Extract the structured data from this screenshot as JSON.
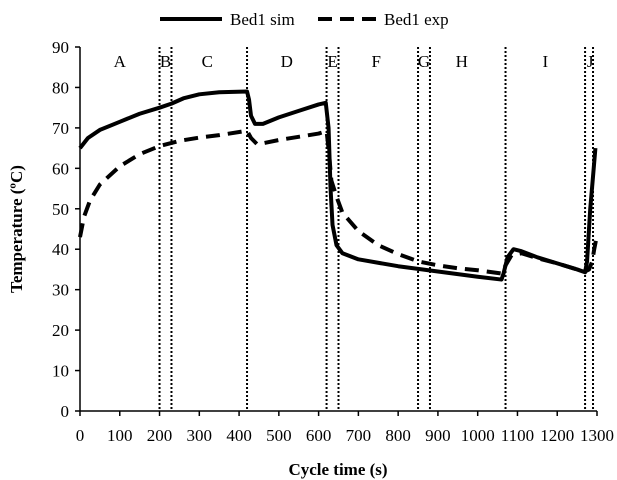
{
  "chart_data": {
    "type": "line",
    "title": "",
    "xlabel": "Cycle time (s)",
    "ylabel": "Temperature (ºC)",
    "xlim": [
      0,
      1300
    ],
    "ylim": [
      0,
      90
    ],
    "x_ticks": [
      0,
      100,
      200,
      300,
      400,
      500,
      600,
      700,
      800,
      900,
      1000,
      1100,
      1200,
      1300
    ],
    "y_ticks": [
      0,
      10,
      20,
      30,
      40,
      50,
      60,
      70,
      80,
      90
    ],
    "grid": false,
    "legend_position": "top",
    "series": [
      {
        "name": "Bed1 sim",
        "style": "solid",
        "color": "#000000",
        "points": [
          [
            0,
            65
          ],
          [
            20,
            67.5
          ],
          [
            50,
            69.5
          ],
          [
            100,
            71.5
          ],
          [
            150,
            73.5
          ],
          [
            200,
            75
          ],
          [
            230,
            76
          ],
          [
            260,
            77.3
          ],
          [
            300,
            78.3
          ],
          [
            350,
            78.8
          ],
          [
            420,
            79
          ],
          [
            425,
            77
          ],
          [
            430,
            73
          ],
          [
            440,
            71
          ],
          [
            460,
            71
          ],
          [
            500,
            72.6
          ],
          [
            550,
            74.2
          ],
          [
            600,
            75.8
          ],
          [
            618,
            76.2
          ],
          [
            625,
            70
          ],
          [
            630,
            55
          ],
          [
            635,
            46
          ],
          [
            645,
            41
          ],
          [
            660,
            39
          ],
          [
            700,
            37.5
          ],
          [
            800,
            35.8
          ],
          [
            900,
            34.5
          ],
          [
            1000,
            33.2
          ],
          [
            1060,
            32.5
          ],
          [
            1065,
            34
          ],
          [
            1075,
            38
          ],
          [
            1090,
            40
          ],
          [
            1110,
            39.5
          ],
          [
            1150,
            38
          ],
          [
            1200,
            36.5
          ],
          [
            1250,
            35
          ],
          [
            1270,
            34.3
          ],
          [
            1275,
            37
          ],
          [
            1283,
            50
          ],
          [
            1290,
            58
          ],
          [
            1296,
            65
          ]
        ]
      },
      {
        "name": "Bed1 exp",
        "style": "dashed",
        "color": "#000000",
        "points": [
          [
            0,
            43
          ],
          [
            10,
            48
          ],
          [
            25,
            52
          ],
          [
            50,
            56
          ],
          [
            100,
            60.5
          ],
          [
            150,
            63.5
          ],
          [
            200,
            65.5
          ],
          [
            250,
            66.8
          ],
          [
            300,
            67.6
          ],
          [
            350,
            68.2
          ],
          [
            420,
            69.3
          ],
          [
            430,
            67.5
          ],
          [
            445,
            66
          ],
          [
            460,
            66.2
          ],
          [
            500,
            67
          ],
          [
            550,
            67.8
          ],
          [
            600,
            68.6
          ],
          [
            620,
            69.2
          ],
          [
            626,
            64
          ],
          [
            632,
            57
          ],
          [
            645,
            53
          ],
          [
            660,
            49
          ],
          [
            700,
            44.5
          ],
          [
            750,
            41
          ],
          [
            800,
            38.8
          ],
          [
            850,
            37
          ],
          [
            900,
            36
          ],
          [
            950,
            35.3
          ],
          [
            1000,
            34.8
          ],
          [
            1060,
            34
          ],
          [
            1070,
            36
          ],
          [
            1085,
            38.5
          ],
          [
            1110,
            39
          ],
          [
            1150,
            37.8
          ],
          [
            1200,
            36.5
          ],
          [
            1250,
            35
          ],
          [
            1270,
            34.5
          ],
          [
            1280,
            35
          ],
          [
            1288,
            37
          ],
          [
            1293,
            40
          ],
          [
            1298,
            42.5
          ]
        ]
      }
    ],
    "region_dividers": [
      200,
      230,
      420,
      620,
      650,
      850,
      880,
      1070,
      1270,
      1290
    ],
    "region_labels": [
      {
        "label": "A",
        "x": 100
      },
      {
        "label": "B",
        "x": 215
      },
      {
        "label": "C",
        "x": 320
      },
      {
        "label": "D",
        "x": 520
      },
      {
        "label": "E",
        "x": 635
      },
      {
        "label": "F",
        "x": 745
      },
      {
        "label": "G",
        "x": 865
      },
      {
        "label": "H",
        "x": 960
      },
      {
        "label": "I",
        "x": 1170
      },
      {
        "label": "J",
        "x": 1283
      }
    ]
  }
}
